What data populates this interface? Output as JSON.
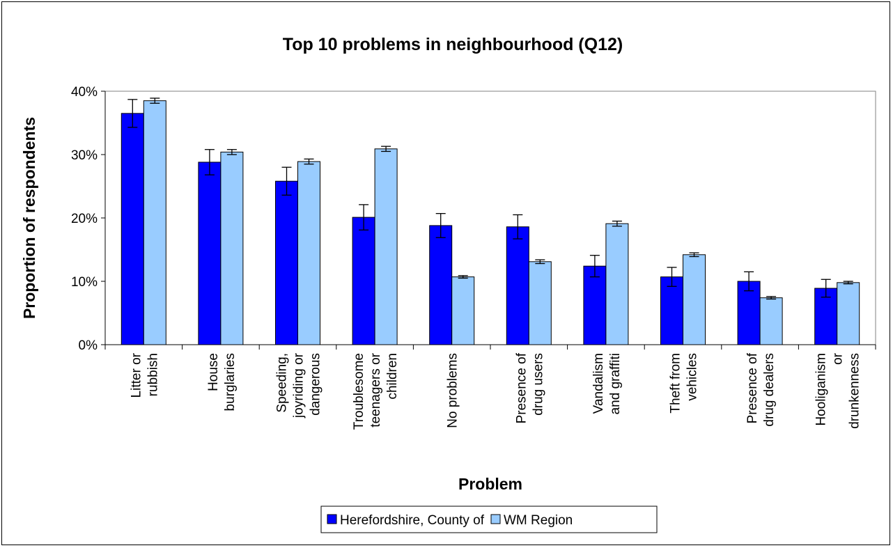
{
  "chart_data": {
    "type": "bar",
    "title": "Top 10 problems in neighbourhood (Q12)",
    "xlabel": "Problem",
    "ylabel": "Proportion of respondents",
    "ylim": [
      0,
      40
    ],
    "yticks": [
      "0%",
      "10%",
      "20%",
      "30%",
      "40%"
    ],
    "grid": false,
    "legend_position": "bottom",
    "categories": [
      [
        "Litter or",
        "rubbish"
      ],
      [
        "House",
        "burglaries"
      ],
      [
        "Speeding,",
        "joyriding or",
        "dangerous"
      ],
      [
        "Troublesome",
        "teenagers or",
        "children"
      ],
      [
        "No problems"
      ],
      [
        "Presence of",
        "drug users"
      ],
      [
        "Vandalism",
        "and graffiti"
      ],
      [
        "Theft from",
        "vehicles"
      ],
      [
        "Presence of",
        "drug dealers"
      ],
      [
        "Hooliganism",
        "or",
        "drunkenness"
      ]
    ],
    "series": [
      {
        "name": "Herefordshire, County of",
        "color": "#0000ff",
        "values": [
          36.5,
          28.8,
          25.8,
          20.1,
          18.8,
          18.6,
          12.4,
          10.7,
          10.0,
          8.9
        ],
        "error": [
          2.2,
          2.0,
          2.2,
          2.0,
          1.9,
          1.9,
          1.7,
          1.5,
          1.5,
          1.4
        ]
      },
      {
        "name": "WM Region",
        "color": "#99ccff",
        "values": [
          38.5,
          30.4,
          28.9,
          30.9,
          10.7,
          13.1,
          19.1,
          14.2,
          7.4,
          9.8
        ],
        "error": [
          0.4,
          0.4,
          0.4,
          0.4,
          0.2,
          0.3,
          0.4,
          0.3,
          0.2,
          0.2
        ]
      }
    ]
  }
}
